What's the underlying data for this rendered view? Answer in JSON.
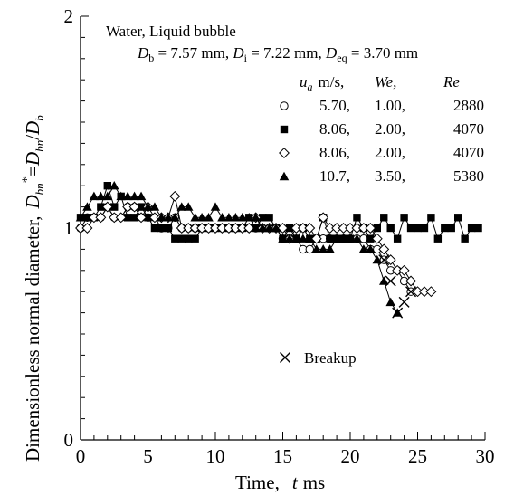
{
  "chart_data": {
    "type": "line",
    "xlabel": {
      "main": "Time,",
      "var": "t",
      "unit": "ms"
    },
    "ylabel": {
      "main": "Dimensionless normal diameter,",
      "sym_D": "D",
      "sub_bn": "bn",
      "sup_star": "*",
      "eq": "=",
      "rhs_D1": "D",
      "rhs_sub1": "bn",
      "slash": "/",
      "rhs_D2": "D",
      "rhs_sub2": "b"
    },
    "xlim": [
      0,
      30
    ],
    "ylim": [
      0,
      2
    ],
    "xticks": [
      0,
      5,
      10,
      15,
      20,
      25,
      30
    ],
    "yticks": [
      0,
      1,
      2
    ],
    "grid": false,
    "annotation": {
      "line1": "Water,  Liquid bubble",
      "line2": {
        "D1": "D",
        "s1": "b",
        "v1": " = 7.57 mm, ",
        "D2": "D",
        "s2": "i",
        "v2": " = 7.22 mm, ",
        "D3": "D",
        "s3": "eq",
        "v3": " = 3.70 mm"
      }
    },
    "legend_header": {
      "ua": "u",
      "ua_sub": "a",
      "ua_unit": "m/s,",
      "we": "We,",
      "re": "Re"
    },
    "legend": [
      {
        "marker": "circle-open",
        "ua": "5.70,",
        "we": "1.00,",
        "re": "2880"
      },
      {
        "marker": "square-filled",
        "ua": "8.06,",
        "we": "2.00,",
        "re": "4070"
      },
      {
        "marker": "diamond-open",
        "ua": "8.06,",
        "we": "2.00,",
        "re": "4070"
      },
      {
        "marker": "triangle-filled",
        "ua": "10.7,",
        "we": "3.50,",
        "re": "5380"
      }
    ],
    "breakup_label": "Breakup",
    "breakup_marker": "x-cross",
    "series": [
      {
        "marker": "circle-open",
        "x": [
          0,
          0.5,
          1,
          1.5,
          2,
          2.5,
          3,
          3.5,
          4,
          4.5,
          5,
          5.5,
          6,
          6.5,
          7,
          7.5,
          8,
          8.5,
          9,
          9.5,
          10,
          10.5,
          11,
          11.5,
          12,
          12.5,
          13,
          13.5,
          14,
          14.5,
          15,
          15.5,
          16,
          16.5,
          17,
          17.5,
          18,
          18.5,
          19,
          19.5,
          20,
          20.5,
          21,
          21.5,
          22,
          22.5,
          23,
          23.5,
          24,
          24.5
        ],
        "y": [
          1.0,
          1.05,
          1.05,
          1.05,
          1.1,
          1.05,
          1.05,
          1.1,
          1.1,
          1.05,
          1.05,
          1.05,
          1.0,
          1.0,
          1.05,
          1.0,
          1.0,
          1.0,
          1.0,
          1.0,
          1.0,
          1.0,
          1.0,
          1.0,
          1.0,
          1.0,
          1.0,
          1.0,
          1.0,
          1.0,
          0.95,
          0.95,
          0.95,
          0.9,
          0.9,
          0.95,
          0.95,
          0.95,
          0.95,
          0.95,
          0.95,
          0.95,
          0.95,
          0.9,
          0.9,
          0.85,
          0.8,
          0.8,
          0.75,
          0.7
        ]
      },
      {
        "marker": "square-filled",
        "x": [
          0,
          0.5,
          1,
          1.5,
          2,
          2.5,
          3,
          3.5,
          4,
          4.5,
          5,
          5.5,
          6,
          6.5,
          7,
          7.5,
          8,
          8.5,
          9,
          9.5,
          10,
          10.5,
          11,
          11.5,
          12,
          12.5,
          13,
          13.5,
          14,
          14.5,
          15,
          15.5,
          16,
          16.5,
          17,
          17.5,
          18,
          18.5,
          19,
          19.5,
          20,
          20.5,
          21,
          21.5,
          22,
          22.5,
          23,
          23.5,
          24,
          24.5,
          25,
          25.5,
          26,
          26.5,
          27,
          27.5,
          28,
          28.5,
          29,
          29.5
        ],
        "y": [
          1.05,
          1.05,
          1.05,
          1.1,
          1.2,
          1.1,
          1.15,
          1.05,
          1.05,
          1.1,
          1.05,
          1.0,
          1.0,
          1.0,
          0.95,
          0.95,
          0.95,
          0.95,
          1.0,
          1.0,
          1.0,
          1.0,
          1.0,
          1.0,
          1.0,
          1.05,
          1.0,
          1.05,
          1.05,
          1.0,
          0.95,
          1.0,
          0.95,
          1.0,
          0.95,
          0.95,
          1.05,
          0.95,
          0.95,
          0.95,
          0.95,
          1.05,
          1.0,
          0.95,
          1.0,
          1.05,
          1.0,
          0.95,
          1.05,
          1.0,
          1.0,
          1.0,
          1.05,
          0.95,
          1.0,
          1.0,
          1.05,
          0.95,
          1.0,
          1.0
        ]
      },
      {
        "marker": "diamond-open",
        "x": [
          0,
          0.5,
          1,
          1.5,
          2,
          2.5,
          3,
          3.5,
          4,
          4.5,
          5,
          5.5,
          6,
          6.5,
          7,
          7.5,
          8,
          8.5,
          9,
          9.5,
          10,
          10.5,
          11,
          11.5,
          12,
          12.5,
          13,
          13.5,
          14,
          14.5,
          15,
          15.5,
          16,
          16.5,
          17,
          17.5,
          18,
          18.5,
          19,
          19.5,
          20,
          20.5,
          21,
          21.5,
          22,
          22.5,
          23,
          23.5,
          24,
          24.5,
          25,
          25.5,
          26
        ],
        "y": [
          1.0,
          1.0,
          1.05,
          1.05,
          1.1,
          1.05,
          1.05,
          1.1,
          1.1,
          1.05,
          1.1,
          1.05,
          1.05,
          1.05,
          1.15,
          1.0,
          1.0,
          1.0,
          1.0,
          1.0,
          1.0,
          1.0,
          1.0,
          1.0,
          1.0,
          1.0,
          1.05,
          1.0,
          1.0,
          1.0,
          1.0,
          0.95,
          1.0,
          1.0,
          1.0,
          0.95,
          1.05,
          1.0,
          1.0,
          1.0,
          1.0,
          1.0,
          1.0,
          1.0,
          0.95,
          0.9,
          0.85,
          0.8,
          0.8,
          0.75,
          0.7,
          0.7,
          0.7
        ]
      },
      {
        "marker": "triangle-filled",
        "x": [
          0,
          0.5,
          1,
          1.5,
          2,
          2.5,
          3,
          3.5,
          4,
          4.5,
          5,
          5.5,
          6,
          6.5,
          7,
          7.5,
          8,
          8.5,
          9,
          9.5,
          10,
          10.5,
          11,
          11.5,
          12,
          12.5,
          13,
          13.5,
          14,
          14.5,
          15,
          15.5,
          16,
          16.5,
          17,
          17.5,
          18,
          18.5,
          19,
          19.5,
          20,
          20.5,
          21,
          21.5,
          22,
          22.5,
          23,
          23.5
        ],
        "y": [
          1.05,
          1.1,
          1.15,
          1.15,
          1.15,
          1.2,
          1.15,
          1.15,
          1.15,
          1.15,
          1.1,
          1.1,
          1.05,
          1.05,
          1.05,
          1.1,
          1.1,
          1.05,
          1.05,
          1.05,
          1.1,
          1.05,
          1.05,
          1.05,
          1.05,
          1.05,
          1.05,
          1.0,
          1.0,
          1.0,
          0.95,
          0.95,
          0.95,
          0.95,
          0.95,
          0.9,
          0.9,
          0.9,
          0.95,
          0.95,
          0.95,
          0.95,
          0.9,
          0.9,
          0.85,
          0.75,
          0.65,
          0.6
        ]
      }
    ],
    "breakup_points": {
      "x": [
        22.5,
        23,
        23.5,
        24,
        24.5
      ],
      "y": [
        0.85,
        0.75,
        0.6,
        0.65,
        0.7
      ]
    }
  }
}
